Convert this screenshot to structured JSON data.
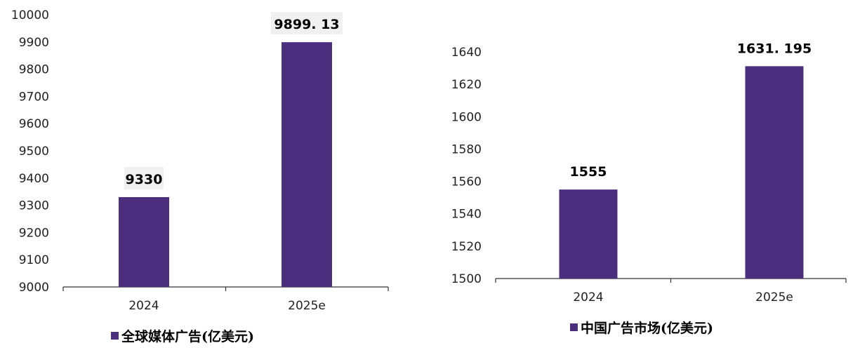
{
  "chart_data": [
    {
      "type": "bar",
      "categories": [
        "2024",
        "2025e"
      ],
      "series": [
        {
          "name": "全球媒体广告(亿美元)",
          "values": [
            9330,
            9899.13
          ]
        }
      ],
      "data_labels": [
        "9330",
        "9899. 13"
      ],
      "ylim": [
        9000,
        10000
      ],
      "yticks": [
        9000,
        9100,
        9200,
        9300,
        9400,
        9500,
        9600,
        9700,
        9800,
        9900,
        10000
      ],
      "color": "#4b2e7e",
      "grid": false,
      "legend_position": "bottom"
    },
    {
      "type": "bar",
      "categories": [
        "2024",
        "2025e"
      ],
      "series": [
        {
          "name": "中国广告市场(亿美元)",
          "values": [
            1555,
            1631.195
          ]
        }
      ],
      "data_labels": [
        "1555",
        "1631. 195"
      ],
      "ylim": [
        1500,
        1650
      ],
      "yticks": [
        1500,
        1520,
        1540,
        1560,
        1580,
        1600,
        1620,
        1640
      ],
      "color": "#4b2e7e",
      "grid": false,
      "legend_position": "bottom"
    }
  ]
}
